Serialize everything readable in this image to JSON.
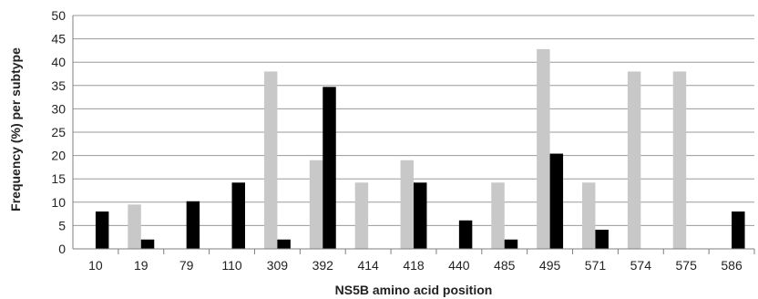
{
  "chart_data": {
    "type": "bar",
    "xlabel": "NS5B amino acid position",
    "ylabel": "Frequency (%) per subtype",
    "ylim": [
      0,
      50
    ],
    "yticks": [
      0,
      5,
      10,
      15,
      20,
      25,
      30,
      35,
      40,
      45,
      50
    ],
    "grid": true,
    "legend": "none",
    "categories": [
      "10",
      "19",
      "79",
      "110",
      "309",
      "392",
      "414",
      "418",
      "440",
      "485",
      "495",
      "571",
      "574",
      "575",
      "586"
    ],
    "series": [
      {
        "color": "#c8c8c8",
        "values": [
          0,
          9.5,
          0,
          0,
          38,
          19,
          14.2,
          19,
          0,
          14.2,
          42.8,
          14.2,
          38,
          38,
          0
        ]
      },
      {
        "color": "#000000",
        "values": [
          8,
          2,
          10.2,
          14.2,
          2,
          34.7,
          0,
          14.2,
          6.1,
          2,
          20.4,
          4.1,
          0,
          0,
          8
        ]
      }
    ]
  }
}
